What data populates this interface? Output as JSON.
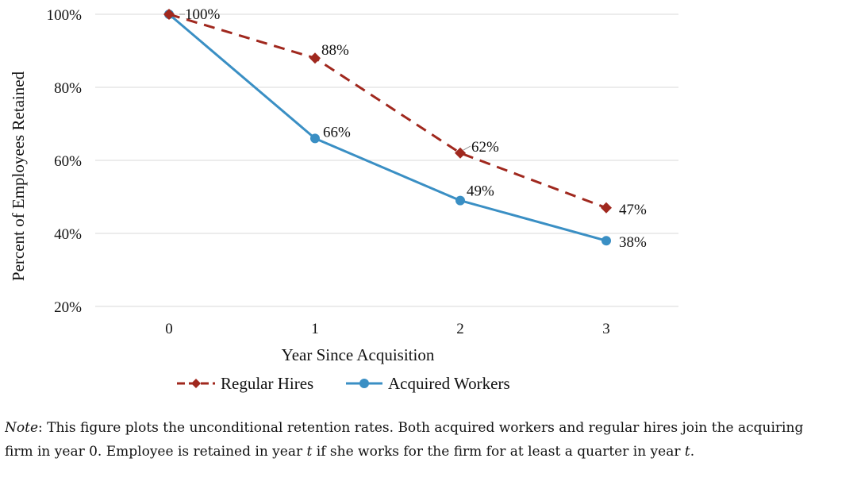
{
  "chart_data": {
    "type": "line",
    "title": "",
    "xlabel": "Year Since Acquisition",
    "ylabel": "Percent of Employees Retained",
    "x": [
      0,
      1,
      2,
      3
    ],
    "x_tick_labels": [
      "0",
      "1",
      "2",
      "3"
    ],
    "ylim": [
      20,
      100
    ],
    "y_ticks": [
      20,
      40,
      60,
      80,
      100
    ],
    "y_tick_labels": [
      "20%",
      "40%",
      "60%",
      "80%",
      "100%"
    ],
    "grid": "horizontal",
    "legend_position": "bottom",
    "series": [
      {
        "name": "Regular Hires",
        "values": [
          100,
          88,
          62,
          47
        ],
        "labels": [
          "",
          "88%",
          "62%",
          "47%"
        ],
        "color": "#a0281e",
        "line_style": "dashed",
        "marker": "diamond"
      },
      {
        "name": "Acquired Workers",
        "values": [
          100,
          66,
          49,
          38
        ],
        "labels": [
          "100%",
          "66%",
          "49%",
          "38%"
        ],
        "color": "#3a8fc4",
        "line_style": "solid",
        "marker": "circle"
      }
    ]
  },
  "note": {
    "lead": "Note",
    "line1_rest": ": This figure plots the unconditional retention rates. Both acquired workers and regular hires join the acquiring",
    "line2_a": "firm in year 0. Employee is retained in year ",
    "var_t": "t",
    "line2_b": " if she works for the firm for at least a quarter in year ",
    "line2_end": "."
  }
}
